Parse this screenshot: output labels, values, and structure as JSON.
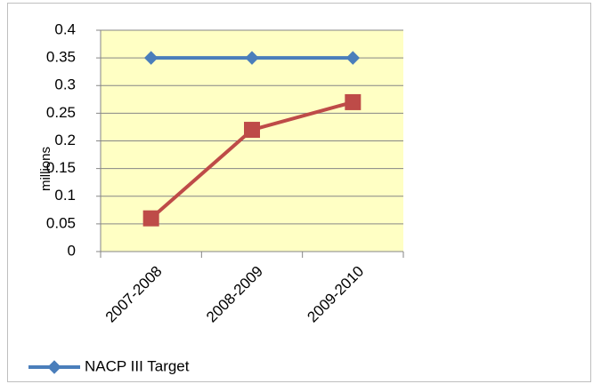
{
  "chart_data": {
    "type": "line",
    "y_label": "millions",
    "categories": [
      "2007-2008",
      "2008-2009",
      "2009-2010"
    ],
    "series": [
      {
        "name": "NACP III Target",
        "color": "#4a7ebb",
        "marker": "diamond",
        "values": [
          0.35,
          0.35,
          0.35
        ]
      },
      {
        "color": "#be4b48",
        "marker": "square",
        "values": [
          0.06,
          0.22,
          0.27
        ]
      }
    ],
    "ylim": [
      0,
      0.4
    ],
    "yticks": [
      0,
      0.05,
      0.1,
      0.15,
      0.2,
      0.25,
      0.3,
      0.35,
      0.4
    ],
    "grid": true,
    "legend": "bottom-left",
    "plot_background": "#ffffc4"
  }
}
